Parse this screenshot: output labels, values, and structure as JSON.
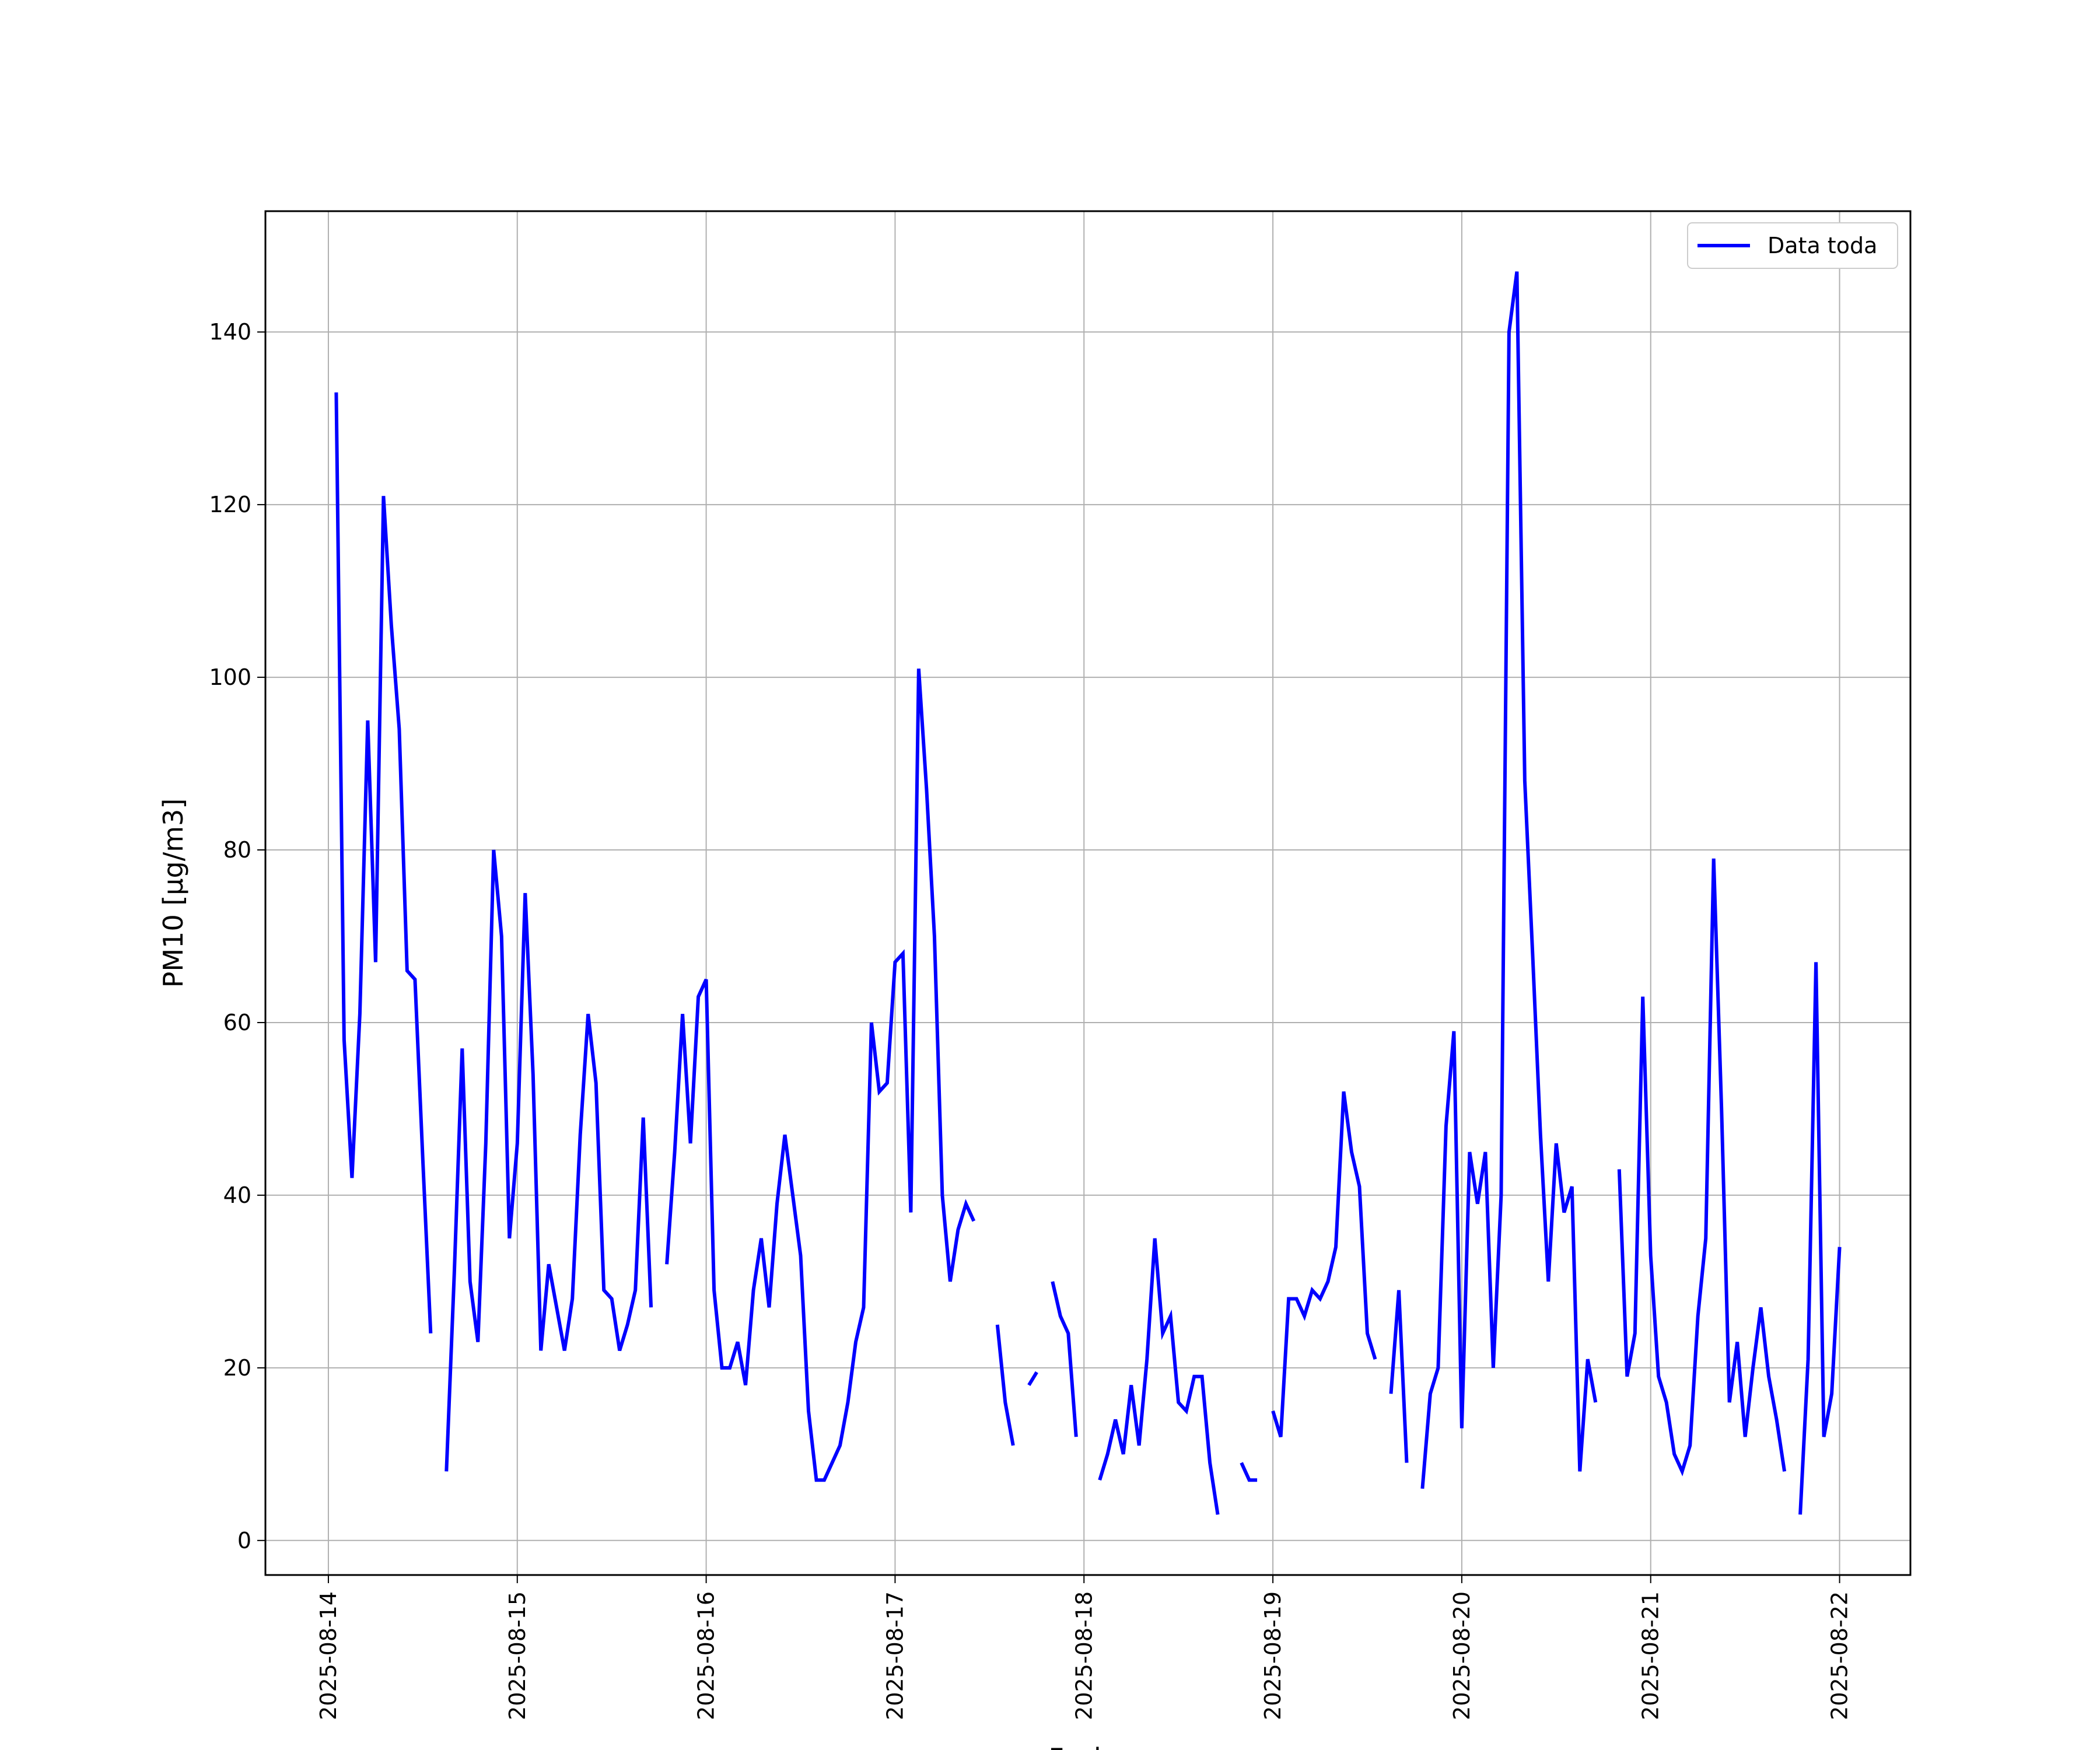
{
  "chart_data": {
    "type": "line",
    "xlabel": "Fecha",
    "ylabel": "PM10 [μg/m3]",
    "ylim": [
      -4,
      154
    ],
    "xlim": [
      "2025-08-13T16:00:00",
      "2025-08-22T09:00:00"
    ],
    "x_ticks": [
      "2025-08-14",
      "2025-08-15",
      "2025-08-16",
      "2025-08-17",
      "2025-08-18",
      "2025-08-19",
      "2025-08-20",
      "2025-08-21",
      "2025-08-22"
    ],
    "y_ticks": [
      0,
      20,
      40,
      60,
      80,
      100,
      120,
      140
    ],
    "grid": true,
    "legend_position": "top-right",
    "series": [
      {
        "name": "Data toda",
        "color": "#0000ff",
        "points": [
          [
            "2025-08-14T01:00",
            133
          ],
          [
            "2025-08-14T02:00",
            58
          ],
          [
            "2025-08-14T03:00",
            42
          ],
          [
            "2025-08-14T04:00",
            61
          ],
          [
            "2025-08-14T05:00",
            95
          ],
          [
            "2025-08-14T06:00",
            67
          ],
          [
            "2025-08-14T07:00",
            121
          ],
          [
            "2025-08-14T08:00",
            106
          ],
          [
            "2025-08-14T09:00",
            94
          ],
          [
            "2025-08-14T10:00",
            66
          ],
          [
            "2025-08-14T11:00",
            65
          ],
          [
            "2025-08-14T12:00",
            44
          ],
          [
            "2025-08-14T13:00",
            24
          ],
          [
            "2025-08-14T14:00",
            null
          ],
          [
            "2025-08-14T15:00",
            8
          ],
          [
            "2025-08-14T16:00",
            31
          ],
          [
            "2025-08-14T17:00",
            57
          ],
          [
            "2025-08-14T18:00",
            30
          ],
          [
            "2025-08-14T19:00",
            23
          ],
          [
            "2025-08-14T20:00",
            46
          ],
          [
            "2025-08-14T21:00",
            80
          ],
          [
            "2025-08-14T22:00",
            70
          ],
          [
            "2025-08-14T23:00",
            35
          ],
          [
            "2025-08-15T00:00",
            46
          ],
          [
            "2025-08-15T01:00",
            75
          ],
          [
            "2025-08-15T02:00",
            54
          ],
          [
            "2025-08-15T03:00",
            22
          ],
          [
            "2025-08-15T04:00",
            32
          ],
          [
            "2025-08-15T05:00",
            27
          ],
          [
            "2025-08-15T06:00",
            22
          ],
          [
            "2025-08-15T07:00",
            28
          ],
          [
            "2025-08-15T08:00",
            47
          ],
          [
            "2025-08-15T09:00",
            61
          ],
          [
            "2025-08-15T10:00",
            53
          ],
          [
            "2025-08-15T11:00",
            29
          ],
          [
            "2025-08-15T12:00",
            28
          ],
          [
            "2025-08-15T13:00",
            22
          ],
          [
            "2025-08-15T14:00",
            25
          ],
          [
            "2025-08-15T15:00",
            29
          ],
          [
            "2025-08-15T16:00",
            49
          ],
          [
            "2025-08-15T17:00",
            27
          ],
          [
            "2025-08-15T18:00",
            null
          ],
          [
            "2025-08-15T19:00",
            32
          ],
          [
            "2025-08-15T20:00",
            45
          ],
          [
            "2025-08-15T21:00",
            61
          ],
          [
            "2025-08-15T22:00",
            46
          ],
          [
            "2025-08-15T23:00",
            63
          ],
          [
            "2025-08-16T00:00",
            65
          ],
          [
            "2025-08-16T01:00",
            29
          ],
          [
            "2025-08-16T02:00",
            20
          ],
          [
            "2025-08-16T03:00",
            20
          ],
          [
            "2025-08-16T04:00",
            23
          ],
          [
            "2025-08-16T05:00",
            18
          ],
          [
            "2025-08-16T06:00",
            29
          ],
          [
            "2025-08-16T07:00",
            35
          ],
          [
            "2025-08-16T08:00",
            27
          ],
          [
            "2025-08-16T09:00",
            39
          ],
          [
            "2025-08-16T10:00",
            47
          ],
          [
            "2025-08-16T11:00",
            40
          ],
          [
            "2025-08-16T12:00",
            33
          ],
          [
            "2025-08-16T13:00",
            15
          ],
          [
            "2025-08-16T14:00",
            7
          ],
          [
            "2025-08-16T15:00",
            7
          ],
          [
            "2025-08-16T16:00",
            9
          ],
          [
            "2025-08-16T17:00",
            11
          ],
          [
            "2025-08-16T18:00",
            16
          ],
          [
            "2025-08-16T19:00",
            23
          ],
          [
            "2025-08-16T20:00",
            27
          ],
          [
            "2025-08-16T21:00",
            60
          ],
          [
            "2025-08-16T22:00",
            52
          ],
          [
            "2025-08-16T23:00",
            53
          ],
          [
            "2025-08-17T00:00",
            67
          ],
          [
            "2025-08-17T01:00",
            68
          ],
          [
            "2025-08-17T02:00",
            38
          ],
          [
            "2025-08-17T03:00",
            101
          ],
          [
            "2025-08-17T04:00",
            87
          ],
          [
            "2025-08-17T05:00",
            70
          ],
          [
            "2025-08-17T06:00",
            40
          ],
          [
            "2025-08-17T07:00",
            30
          ],
          [
            "2025-08-17T08:00",
            36
          ],
          [
            "2025-08-17T09:00",
            39
          ],
          [
            "2025-08-17T10:00",
            37
          ],
          [
            "2025-08-17T11:00",
            null
          ],
          [
            "2025-08-17T12:00",
            null
          ],
          [
            "2025-08-17T13:00",
            25
          ],
          [
            "2025-08-17T14:00",
            16
          ],
          [
            "2025-08-17T15:00",
            11
          ],
          [
            "2025-08-17T16:00",
            null
          ],
          [
            "2025-08-17T17:00",
            18
          ],
          [
            "2025-08-17T18:00",
            19.5
          ],
          [
            "2025-08-17T19:00",
            null
          ],
          [
            "2025-08-17T20:00",
            30
          ],
          [
            "2025-08-17T21:00",
            26
          ],
          [
            "2025-08-17T22:00",
            24
          ],
          [
            "2025-08-17T23:00",
            12
          ],
          [
            "2025-08-18T00:00",
            null
          ],
          [
            "2025-08-18T01:00",
            null
          ],
          [
            "2025-08-18T02:00",
            7
          ],
          [
            "2025-08-18T03:00",
            10
          ],
          [
            "2025-08-18T04:00",
            14
          ],
          [
            "2025-08-18T05:00",
            10
          ],
          [
            "2025-08-18T06:00",
            18
          ],
          [
            "2025-08-18T07:00",
            11
          ],
          [
            "2025-08-18T08:00",
            21
          ],
          [
            "2025-08-18T09:00",
            35
          ],
          [
            "2025-08-18T10:00",
            24
          ],
          [
            "2025-08-18T11:00",
            26
          ],
          [
            "2025-08-18T12:00",
            16
          ],
          [
            "2025-08-18T13:00",
            15
          ],
          [
            "2025-08-18T14:00",
            19
          ],
          [
            "2025-08-18T15:00",
            19
          ],
          [
            "2025-08-18T16:00",
            9
          ],
          [
            "2025-08-18T17:00",
            3
          ],
          [
            "2025-08-18T18:00",
            null
          ],
          [
            "2025-08-18T19:00",
            null
          ],
          [
            "2025-08-18T20:00",
            9
          ],
          [
            "2025-08-18T21:00",
            7
          ],
          [
            "2025-08-18T22:00",
            7
          ],
          [
            "2025-08-18T23:00",
            null
          ],
          [
            "2025-08-19T00:00",
            15
          ],
          [
            "2025-08-19T01:00",
            12
          ],
          [
            "2025-08-19T02:00",
            28
          ],
          [
            "2025-08-19T03:00",
            28
          ],
          [
            "2025-08-19T04:00",
            26
          ],
          [
            "2025-08-19T05:00",
            29
          ],
          [
            "2025-08-19T06:00",
            28
          ],
          [
            "2025-08-19T07:00",
            30
          ],
          [
            "2025-08-19T08:00",
            34
          ],
          [
            "2025-08-19T09:00",
            52
          ],
          [
            "2025-08-19T10:00",
            45
          ],
          [
            "2025-08-19T11:00",
            41
          ],
          [
            "2025-08-19T12:00",
            24
          ],
          [
            "2025-08-19T13:00",
            21
          ],
          [
            "2025-08-19T14:00",
            null
          ],
          [
            "2025-08-19T15:00",
            17
          ],
          [
            "2025-08-19T16:00",
            29
          ],
          [
            "2025-08-19T17:00",
            9
          ],
          [
            "2025-08-19T18:00",
            null
          ],
          [
            "2025-08-19T19:00",
            6
          ],
          [
            "2025-08-19T20:00",
            17
          ],
          [
            "2025-08-19T21:00",
            20
          ],
          [
            "2025-08-19T22:00",
            48
          ],
          [
            "2025-08-19T23:00",
            59
          ],
          [
            "2025-08-20T00:00",
            13
          ],
          [
            "2025-08-20T01:00",
            45
          ],
          [
            "2025-08-20T02:00",
            39
          ],
          [
            "2025-08-20T03:00",
            45
          ],
          [
            "2025-08-20T04:00",
            20
          ],
          [
            "2025-08-20T05:00",
            40
          ],
          [
            "2025-08-20T06:00",
            140
          ],
          [
            "2025-08-20T07:00",
            147
          ],
          [
            "2025-08-20T08:00",
            88
          ],
          [
            "2025-08-20T09:00",
            68
          ],
          [
            "2025-08-20T10:00",
            47
          ],
          [
            "2025-08-20T11:00",
            30
          ],
          [
            "2025-08-20T12:00",
            46
          ],
          [
            "2025-08-20T13:00",
            38
          ],
          [
            "2025-08-20T14:00",
            41
          ],
          [
            "2025-08-20T15:00",
            8
          ],
          [
            "2025-08-20T16:00",
            21
          ],
          [
            "2025-08-20T17:00",
            16
          ],
          [
            "2025-08-20T18:00",
            null
          ],
          [
            "2025-08-20T19:00",
            null
          ],
          [
            "2025-08-20T20:00",
            43
          ],
          [
            "2025-08-20T21:00",
            19
          ],
          [
            "2025-08-20T22:00",
            24
          ],
          [
            "2025-08-20T23:00",
            63
          ],
          [
            "2025-08-21T00:00",
            33
          ],
          [
            "2025-08-21T01:00",
            19
          ],
          [
            "2025-08-21T02:00",
            16
          ],
          [
            "2025-08-21T03:00",
            10
          ],
          [
            "2025-08-21T04:00",
            8
          ],
          [
            "2025-08-21T05:00",
            11
          ],
          [
            "2025-08-21T06:00",
            26
          ],
          [
            "2025-08-21T07:00",
            35
          ],
          [
            "2025-08-21T08:00",
            79
          ],
          [
            "2025-08-21T09:00",
            50
          ],
          [
            "2025-08-21T10:00",
            16
          ],
          [
            "2025-08-21T11:00",
            23
          ],
          [
            "2025-08-21T12:00",
            12
          ],
          [
            "2025-08-21T13:00",
            20
          ],
          [
            "2025-08-21T14:00",
            27
          ],
          [
            "2025-08-21T15:00",
            19
          ],
          [
            "2025-08-21T16:00",
            14
          ],
          [
            "2025-08-21T17:00",
            8
          ],
          [
            "2025-08-21T18:00",
            null
          ],
          [
            "2025-08-21T19:00",
            3
          ],
          [
            "2025-08-21T20:00",
            21
          ],
          [
            "2025-08-21T21:00",
            67
          ],
          [
            "2025-08-21T22:00",
            12
          ],
          [
            "2025-08-21T23:00",
            17
          ],
          [
            "2025-08-22T00:00",
            34
          ]
        ]
      }
    ]
  }
}
